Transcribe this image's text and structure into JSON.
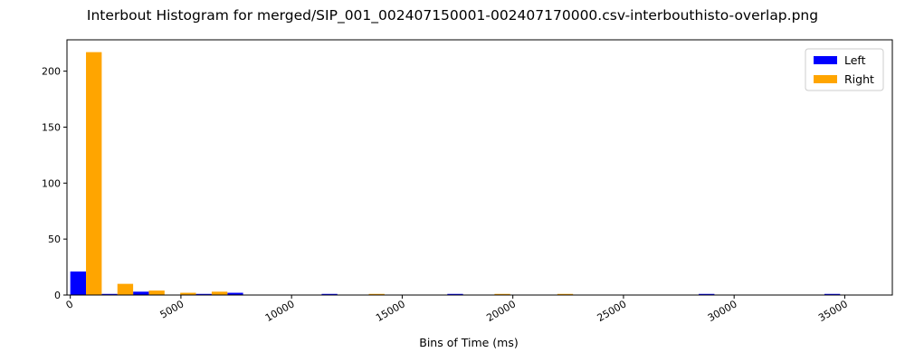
{
  "chart_data": {
    "type": "bar",
    "title": "Interbout Histogram for merged/SIP_001_002407150001-002407170000.csv-interbouthisto-overlap.png",
    "xlabel": "Bins of Time (ms)",
    "ylabel": "",
    "xlim": [
      -150,
      37150
    ],
    "ylim": [
      0,
      228
    ],
    "xticks": [
      0,
      5000,
      10000,
      15000,
      20000,
      25000,
      30000,
      35000
    ],
    "xtick_labels": [
      "0",
      "5000",
      "10000",
      "15000",
      "20000",
      "25000",
      "30000",
      "35000"
    ],
    "yticks": [
      0,
      50,
      100,
      150,
      200
    ],
    "ytick_labels": [
      "0",
      "50",
      "100",
      "150",
      "200"
    ],
    "bin_starts": [
      0,
      1420,
      2840,
      4260,
      5680,
      7100,
      8520,
      9940,
      11360,
      12780,
      14200,
      15620,
      17040,
      18460,
      19880,
      21300,
      22720,
      24140,
      25560,
      26980,
      28400,
      29820,
      31240,
      32660,
      34080
    ],
    "bin_width": 1420,
    "legend_position": "top-right",
    "grid": false,
    "series": [
      {
        "name": "Left",
        "color": "#0000ff",
        "values": [
          21,
          1,
          3,
          0,
          1,
          2,
          0,
          0,
          1,
          0,
          0,
          0,
          1,
          0,
          0,
          0,
          0,
          0,
          0,
          0,
          1,
          0,
          0,
          0,
          1
        ]
      },
      {
        "name": "Right",
        "color": "#ffa500",
        "values": [
          217,
          10,
          4,
          2,
          3,
          0,
          0,
          0,
          0,
          1,
          0,
          0,
          0,
          1,
          0,
          1,
          0,
          0,
          0,
          0,
          0,
          0,
          0,
          0,
          0
        ]
      }
    ]
  }
}
